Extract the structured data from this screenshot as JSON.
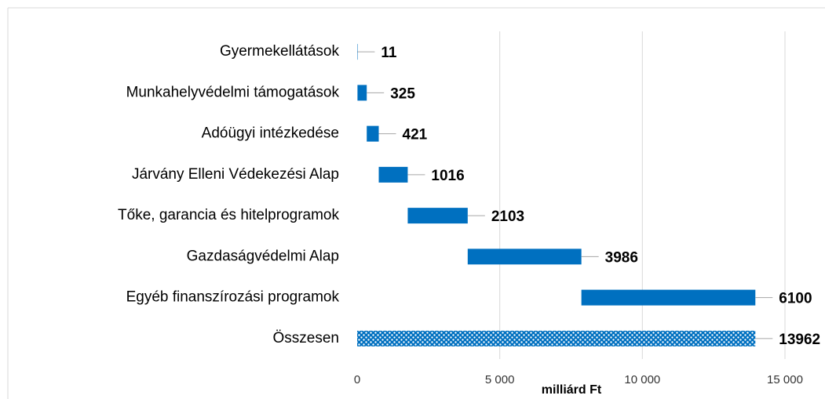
{
  "chart_data": {
    "type": "waterfall",
    "categories": [
      "Gyermekellátások",
      "Munkahelyvédelmi támogatások",
      "Adóügyi intézkedése",
      "Járvány Elleni Védekezési Alap",
      "Tőke, garancia és hitelprogramok",
      "Gazdaságvédelmi Alap",
      "Egyéb finanszírozási programok",
      "Összesen"
    ],
    "values": [
      11,
      325,
      421,
      1016,
      2103,
      3986,
      6100,
      13962
    ],
    "color": "#0070c0",
    "xlabel": "milliárd Ft",
    "xlim": [
      0,
      15000
    ],
    "xticks": [
      0,
      {
        "value": 5000,
        "label": "5 000"
      },
      {
        "value": 10000,
        "label": "10 000"
      },
      {
        "value": 15000,
        "label": "15 000"
      }
    ],
    "grid": true
  }
}
